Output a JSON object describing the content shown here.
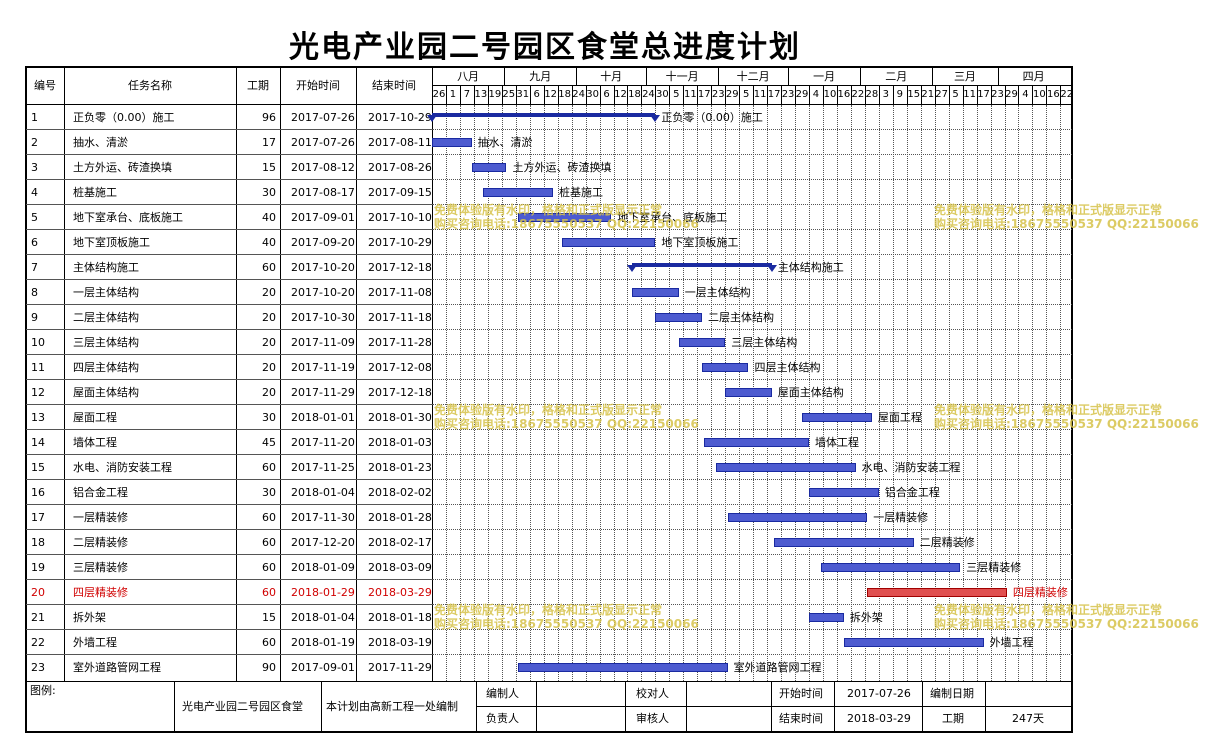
{
  "title": "光电产业园二号园区食堂总进度计划",
  "headers": {
    "id": "编号",
    "name": "任务名称",
    "duration": "工期",
    "start": "开始时间",
    "end": "结束时间"
  },
  "months": [
    "八月",
    "九月",
    "十月",
    "十一月",
    "十二月",
    "一月",
    "二月",
    "三月",
    "四月"
  ],
  "days": [
    "26",
    "1",
    "7",
    "13",
    "19",
    "25",
    "31",
    "6",
    "12",
    "18",
    "24",
    "30",
    "6",
    "12",
    "18",
    "24",
    "30",
    "5",
    "11",
    "17",
    "23",
    "29",
    "5",
    "11",
    "17",
    "23",
    "29",
    "4",
    "10",
    "16",
    "22",
    "28",
    "3",
    "9",
    "15",
    "21",
    "27",
    "5",
    "11",
    "17",
    "23",
    "29",
    "4",
    "10",
    "16",
    "22"
  ],
  "chart_data": {
    "type": "table",
    "title": "光电产业园二号园区食堂总进度计划",
    "x_axis_start": "2017-07-26",
    "x_axis_end": "2018-04-26",
    "tasks": [
      {
        "id": "1",
        "name": "正负零（0.00）施工",
        "duration": "96",
        "start": "2017-07-26",
        "end": "2017-10-29",
        "summary": true
      },
      {
        "id": "2",
        "name": "抽水、清淤",
        "duration": "17",
        "start": "2017-07-26",
        "end": "2017-08-11"
      },
      {
        "id": "3",
        "name": "土方外运、砖渣换填",
        "duration": "15",
        "start": "2017-08-12",
        "end": "2017-08-26"
      },
      {
        "id": "4",
        "name": "桩基施工",
        "duration": "30",
        "start": "2017-08-17",
        "end": "2017-09-15"
      },
      {
        "id": "5",
        "name": "地下室承台、底板施工",
        "duration": "40",
        "start": "2017-09-01",
        "end": "2017-10-10"
      },
      {
        "id": "6",
        "name": "地下室顶板施工",
        "duration": "40",
        "start": "2017-09-20",
        "end": "2017-10-29"
      },
      {
        "id": "7",
        "name": "主体结构施工",
        "duration": "60",
        "start": "2017-10-20",
        "end": "2017-12-18",
        "summary": true
      },
      {
        "id": "8",
        "name": "一层主体结构",
        "duration": "20",
        "start": "2017-10-20",
        "end": "2017-11-08"
      },
      {
        "id": "9",
        "name": "二层主体结构",
        "duration": "20",
        "start": "2017-10-30",
        "end": "2017-11-18"
      },
      {
        "id": "10",
        "name": "三层主体结构",
        "duration": "20",
        "start": "2017-11-09",
        "end": "2017-11-28"
      },
      {
        "id": "11",
        "name": "四层主体结构",
        "duration": "20",
        "start": "2017-11-19",
        "end": "2017-12-08"
      },
      {
        "id": "12",
        "name": "屋面主体结构",
        "duration": "20",
        "start": "2017-11-29",
        "end": "2017-12-18"
      },
      {
        "id": "13",
        "name": "屋面工程",
        "duration": "30",
        "start": "2018-01-01",
        "end": "2018-01-30"
      },
      {
        "id": "14",
        "name": "墙体工程",
        "duration": "45",
        "start": "2017-11-20",
        "end": "2018-01-03"
      },
      {
        "id": "15",
        "name": "水电、消防安装工程",
        "duration": "60",
        "start": "2017-11-25",
        "end": "2018-01-23"
      },
      {
        "id": "16",
        "name": "铝合金工程",
        "duration": "30",
        "start": "2018-01-04",
        "end": "2018-02-02"
      },
      {
        "id": "17",
        "name": "一层精装修",
        "duration": "60",
        "start": "2017-11-30",
        "end": "2018-01-28"
      },
      {
        "id": "18",
        "name": "二层精装修",
        "duration": "60",
        "start": "2017-12-20",
        "end": "2018-02-17"
      },
      {
        "id": "19",
        "name": "三层精装修",
        "duration": "60",
        "start": "2018-01-09",
        "end": "2018-03-09"
      },
      {
        "id": "20",
        "name": "四层精装修",
        "duration": "60",
        "start": "2018-01-29",
        "end": "2018-03-29",
        "highlight": true
      },
      {
        "id": "21",
        "name": "拆外架",
        "duration": "15",
        "start": "2018-01-04",
        "end": "2018-01-18"
      },
      {
        "id": "22",
        "name": "外墙工程",
        "duration": "60",
        "start": "2018-01-19",
        "end": "2018-03-19"
      },
      {
        "id": "23",
        "name": "室外道路管网工程",
        "duration": "90",
        "start": "2017-09-01",
        "end": "2017-11-29"
      }
    ]
  },
  "watermark": {
    "line1": "免费体验版有水印，格格和正式版显示正常",
    "line2": "购买咨询电话:18675550537 QQ:22150066"
  },
  "footer": {
    "legend_label": "图例:",
    "project": "光电产业园二号园区食堂",
    "compiled_by_note": "本计划由高新工程一处编制",
    "editor_label": "编制人",
    "checker_label": "校对人",
    "start_label": "开始时间",
    "start_value": "2017-07-26",
    "date_label": "编制日期",
    "responsible_label": "负责人",
    "reviewer_label": "审核人",
    "end_label": "结束时间",
    "end_value": "2018-03-29",
    "duration_label": "工期",
    "duration_value": "247天"
  },
  "colors": {
    "bar": "#4d5bd0",
    "bar_highlight": "#e05050",
    "highlight_text": "#d00000",
    "watermark": "#d6c24a"
  }
}
